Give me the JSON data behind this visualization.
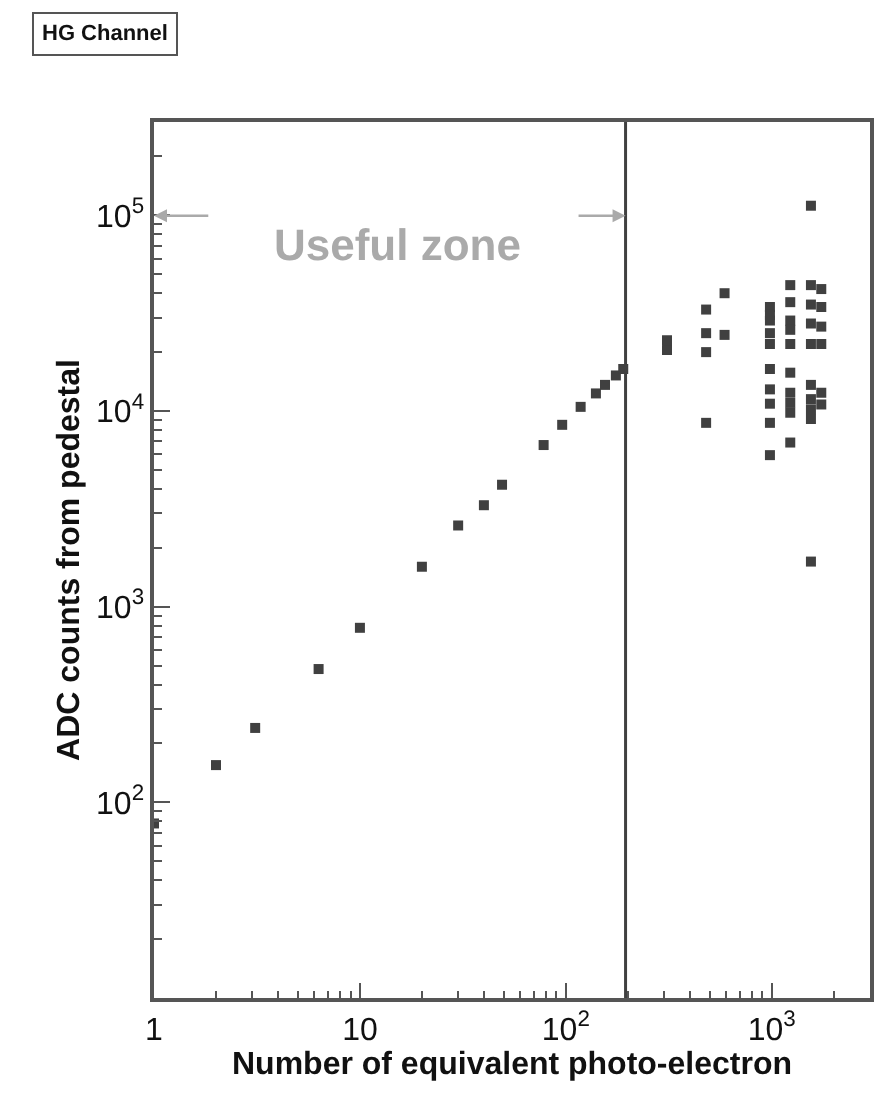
{
  "chart_data": {
    "type": "scatter",
    "title": "HG Channel",
    "xlabel": "Number of equivalent photo-electron",
    "ylabel": "ADC counts from pedestal",
    "log": "xy",
    "marker": "square",
    "xlim": [
      1,
      3000
    ],
    "ylim": [
      10,
      300000
    ],
    "xticks": [
      1,
      10,
      {
        "value": 100,
        "label": "10$^{2}$"
      },
      {
        "value": 1000,
        "label": "10$^{3}$"
      }
    ],
    "yticks": [
      {
        "value": 100,
        "label": "10$^{2}$"
      },
      {
        "value": 1000,
        "label": "10$^{3}$"
      },
      {
        "value": 10000,
        "label": "10$^{4}$"
      },
      {
        "value": 100000,
        "label": "10$^{5}$"
      }
    ],
    "series": [
      {
        "color": "#404040",
        "x": [
          1,
          2,
          3.1,
          6.3,
          10,
          20,
          30,
          40,
          49,
          78,
          96,
          118,
          140,
          155,
          175,
          190,
          310,
          310,
          480,
          480,
          480,
          480,
          590,
          590,
          980,
          980,
          980,
          980,
          980,
          980,
          980,
          980,
          980,
          980,
          1230,
          1230,
          1230,
          1230,
          1230,
          1230,
          1230,
          1230,
          1230,
          1230,
          1550,
          1550,
          1550,
          1550,
          1550,
          1550,
          1550,
          1550,
          1550,
          1550,
          1740,
          1740,
          1740,
          1740,
          1740,
          1740
        ],
        "values": [
          78,
          155,
          240,
          480,
          780,
          1600,
          2600,
          3300,
          4200,
          6700,
          8500,
          10500,
          12300,
          13600,
          15200,
          16400,
          20500,
          23000,
          33000,
          25000,
          20000,
          8700,
          40000,
          24500,
          34000,
          29000,
          25000,
          22000,
          16400,
          12900,
          10900,
          8700,
          5950,
          31000,
          44000,
          36000,
          29000,
          22000,
          15700,
          12400,
          11000,
          9800,
          6900,
          26000,
          112000,
          44000,
          35000,
          28000,
          22000,
          13600,
          11500,
          10200,
          9100,
          1700,
          42000,
          34000,
          27000,
          22000,
          12400,
          10800
        ]
      }
    ],
    "ref_lines": [
      {
        "axis": "x",
        "value": 195,
        "color": "#404040"
      }
    ],
    "annotations": [
      "Useful zone"
    ]
  }
}
